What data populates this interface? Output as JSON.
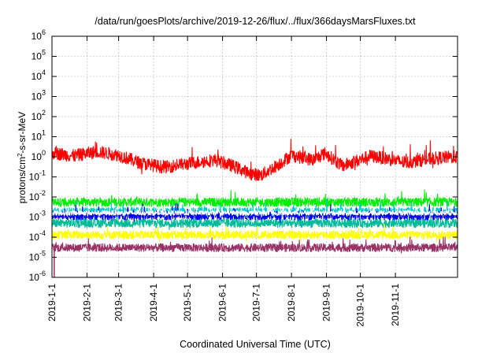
{
  "chart_data": {
    "type": "line",
    "title": "/data/run/goesPlots/archive/2019-12-26/flux/../flux/366daysMarsFluxes.txt",
    "xlabel": "Coordinated Universal Time (UTC)",
    "ylabel": {
      "pre": "protons/cm",
      "sup": "2",
      "post": "-s-sr-MeV"
    },
    "x_range": [
      "2019-01-01",
      "2019-12-26"
    ],
    "x_ticks": [
      "2019-1-1",
      "2019-2-1",
      "2019-3-1",
      "2019-4-1",
      "2019-5-1",
      "2019-6-1",
      "2019-7-1",
      "2019-8-1",
      "2019-9-1",
      "2019-10-1",
      "2019-11-1"
    ],
    "y_scale": "log",
    "y_range": [
      1e-06,
      1000000.0
    ],
    "y_ticks": [
      {
        "base": "10",
        "exp": "-6"
      },
      {
        "base": "10",
        "exp": "-5"
      },
      {
        "base": "10",
        "exp": "-4"
      },
      {
        "base": "10",
        "exp": "-3"
      },
      {
        "base": "10",
        "exp": "-2"
      },
      {
        "base": "10",
        "exp": "-1"
      },
      {
        "base": "10",
        "exp": "0"
      },
      {
        "base": "10",
        "exp": "1"
      },
      {
        "base": "10",
        "exp": "2"
      },
      {
        "base": "10",
        "exp": "3"
      },
      {
        "base": "10",
        "exp": "4"
      },
      {
        "base": "10",
        "exp": "5"
      },
      {
        "base": "10",
        "exp": "6"
      }
    ],
    "grid": true,
    "series": [
      {
        "color": "#00ee00",
        "level": 0.0055,
        "spread": 0.22,
        "keypoints": [
          [
            "2019-01-01",
            0.0055
          ],
          [
            "2019-12-26",
            0.0055
          ]
        ]
      },
      {
        "color": "#00c8c8",
        "level": 0.0018,
        "spread": 0.22,
        "keypoints": [
          [
            "2019-01-01",
            0.0018
          ],
          [
            "2019-12-26",
            0.0018
          ]
        ]
      },
      {
        "color": "#00bb99",
        "level": 0.0005,
        "spread": 0.22,
        "keypoints": [
          [
            "2019-01-01",
            0.0005
          ],
          [
            "2019-12-26",
            0.0005
          ]
        ]
      },
      {
        "color": "#0000ee",
        "level": 0.0012,
        "spread": 0.22,
        "keypoints": [
          [
            "2019-01-01",
            0.0012
          ],
          [
            "2019-12-26",
            0.0012
          ]
        ]
      },
      {
        "color": "#ffffff",
        "level": 0.0016,
        "spread": 0.12,
        "keypoints": [
          [
            "2019-01-01",
            0.0016
          ],
          [
            "2019-12-26",
            0.0016
          ]
        ]
      },
      {
        "color": "#ffff00",
        "level": 0.00013,
        "spread": 0.2,
        "keypoints": [
          [
            "2019-01-01",
            0.00013
          ],
          [
            "2019-12-26",
            0.00013
          ]
        ]
      },
      {
        "color": "#993366",
        "level": 3e-05,
        "spread": 0.2,
        "keypoints": [
          [
            "2019-01-01",
            3e-05
          ],
          [
            "2019-12-26",
            3e-05
          ]
        ]
      },
      {
        "color": "#ff0000",
        "level": 1.0,
        "spread": 0.32,
        "keypoints": [
          [
            "2019-01-01",
            1.6
          ],
          [
            "2019-01-20",
            1.1
          ],
          [
            "2019-02-10",
            1.8
          ],
          [
            "2019-03-01",
            1.2
          ],
          [
            "2019-03-20",
            0.5
          ],
          [
            "2019-04-10",
            0.3
          ],
          [
            "2019-05-01",
            0.45
          ],
          [
            "2019-05-25",
            0.7
          ],
          [
            "2019-06-10",
            0.35
          ],
          [
            "2019-06-25",
            0.15
          ],
          [
            "2019-07-05",
            0.12
          ],
          [
            "2019-07-20",
            0.4
          ],
          [
            "2019-08-01",
            1.2
          ],
          [
            "2019-08-20",
            0.7
          ],
          [
            "2019-08-31",
            1.5
          ],
          [
            "2019-09-15",
            0.35
          ],
          [
            "2019-09-30",
            0.7
          ],
          [
            "2019-10-10",
            1.1
          ],
          [
            "2019-10-25",
            0.8
          ],
          [
            "2019-11-10",
            0.5
          ],
          [
            "2019-11-25",
            0.7
          ],
          [
            "2019-12-10",
            0.9
          ],
          [
            "2019-12-26",
            1.0
          ]
        ]
      }
    ],
    "outliers": [
      {
        "date": "2019-01-03",
        "value": 1e-06
      }
    ]
  }
}
